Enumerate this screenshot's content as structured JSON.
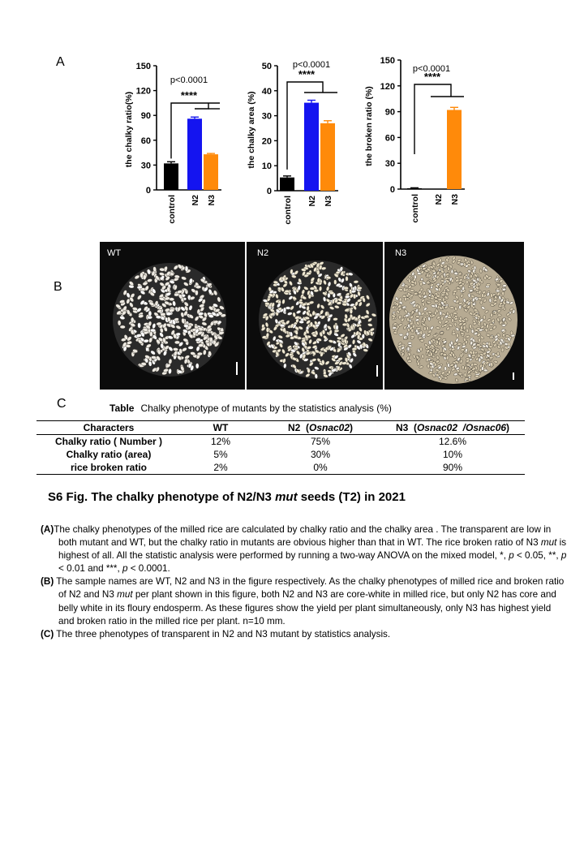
{
  "panels": {
    "a": "A",
    "b": "B",
    "c": "C"
  },
  "colors": {
    "control": "#000000",
    "n2": "#1414f0",
    "n3": "#ff8a0a"
  },
  "chart_data": [
    {
      "type": "bar",
      "ylabel": "the chalky ratio(%)",
      "categories": [
        "control",
        "N2",
        "N3"
      ],
      "values": [
        32,
        86,
        43
      ],
      "errors": [
        2,
        2,
        1
      ],
      "ylim": [
        0,
        150
      ],
      "yticks": [
        "0",
        "30",
        "60",
        "90",
        "120",
        "150"
      ],
      "annotation": "p<0.0001",
      "stars": "****"
    },
    {
      "type": "bar",
      "ylabel": "the chalky area (%)",
      "categories": [
        "control",
        "N2",
        "N3"
      ],
      "values": [
        5.3,
        35.2,
        27
      ],
      "errors": [
        0.6,
        1,
        1
      ],
      "ylim": [
        0,
        50
      ],
      "yticks": [
        "0",
        "10",
        "20",
        "30",
        "40",
        "50"
      ],
      "annotation": "p<0.0001",
      "stars": "****"
    },
    {
      "type": "bar",
      "ylabel": "the broken ratio (%)",
      "categories": [
        "control",
        "N2",
        "N3"
      ],
      "values": [
        1,
        0,
        92
      ],
      "errors": [
        0.5,
        0,
        3
      ],
      "ylim": [
        0,
        150
      ],
      "yticks": [
        "0",
        "30",
        "60",
        "90",
        "120",
        "150"
      ],
      "annotation": "p<0.0001",
      "stars": "****"
    }
  ],
  "photos": [
    {
      "label": "WT",
      "grain": "#eeeae2",
      "spot": "#ffffff"
    },
    {
      "label": "N2",
      "grain": "#efe8d2",
      "spot": "#ffffff"
    },
    {
      "label": "N3",
      "grain": "#d9ccb0",
      "spot": "#f1ece1"
    }
  ],
  "table": {
    "title_bold": "Table",
    "title_rest": "Chalky phenotype of mutants by the statistics analysis (%)",
    "headers": {
      "characters": "Characters",
      "wt": "WT",
      "n2_prefix": "N2  (",
      "n2_gene": "Osnac02",
      "n2_suffix": ")",
      "n3_prefix": "N3  (",
      "n3_gene": "Osnac02  /Osnac06",
      "n3_suffix": ")"
    },
    "rows": [
      {
        "name": "Chalky ratio ( Number )",
        "wt": "12%",
        "n2": "75%",
        "n3": "12.6%"
      },
      {
        "name": "Chalky  ratio (area)",
        "wt": "5%",
        "n2": "30%",
        "n3": "10%"
      },
      {
        "name": "rice broken ratio",
        "wt": "2%",
        "n2": "0%",
        "n3": "90%"
      }
    ]
  },
  "figure": {
    "title_prefix": "S6 Fig. The chalky phenotype of N2/N3 ",
    "title_italic": "mut",
    "title_suffix": " seeds (T2) in 2021"
  },
  "legend": {
    "a_tag": "(A)",
    "a_part1": "The  chalky phenotypes of the milled rice are calculated by chalky ratio and the chalky area  . The transparent are low in both mutant and WT, but the chalky ratio in mutants are obvious  higher than that in WT. The  rice broken ratio of N3 ",
    "a_italic": "mut",
    "a_part2": " is highest of all. All the statistic analysis were  performed  by running  a two-way ANOVA on the mixed model, *, ",
    "a_p1": "p",
    "a_part3": " < 0.05, **, ",
    "a_p2": "p",
    "a_part4": " < 0.01 and ***, ",
    "a_p3": "p",
    "a_part5": " < 0.0001.",
    "b_tag": "(B)",
    "b_part1": " The  sample names are WT, N2 and N3 in the figure respectively. As the chalky phenotypes of milled rice and broken ratio of N2 and N3 ",
    "b_italic": "mut",
    "b_part2": " per plant shown in this figure,  both N2 and N3 are core-white  in milled rice, but only N2 has core and belly white in its floury endosperm.  As these figures show the yield per plant simultaneously, only N3 has highest  yield and broken ratio in the milled rice per plant. n=10 mm.",
    "c_tag": "(C)",
    "c_text": " The  three phenotypes of transparent  in N2 and N3 mutant by statistics analysis."
  }
}
